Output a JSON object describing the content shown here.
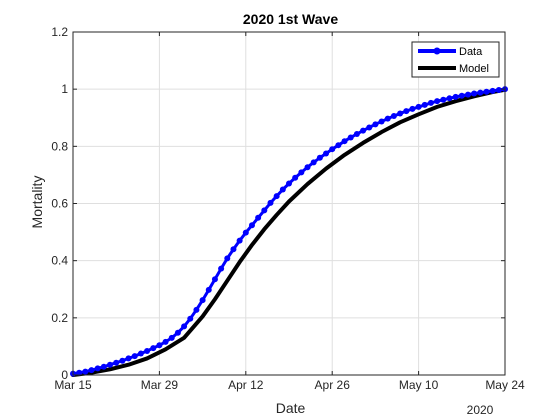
{
  "chart_data": {
    "type": "line",
    "title": "2020 1st Wave",
    "xlabel": "Date",
    "ylabel": "Mortality",
    "x_secondary_label": "2020",
    "x_ticks": [
      "2020-03-15",
      "2020-03-29",
      "2020-04-12",
      "2020-04-26",
      "2020-05-10",
      "2020-05-24"
    ],
    "x_tick_labels": [
      "Mar 15",
      "Mar 29",
      "Apr 12",
      "Apr 26",
      "May 10",
      "May 24"
    ],
    "xlim": [
      "2020-03-15",
      "2020-05-24"
    ],
    "ylim": [
      0,
      1.2
    ],
    "y_ticks": [
      0,
      0.2,
      0.4,
      0.6,
      0.8,
      1,
      1.2
    ],
    "y_tick_labels": [
      "0",
      "0.2",
      "0.4",
      "0.6",
      "0.8",
      "1",
      "1.2"
    ],
    "grid": true,
    "legend_position": "top-right",
    "series": [
      {
        "name": "Data",
        "color": "#0000ff",
        "style": "line-with-circle-markers",
        "x": [
          "2020-03-15",
          "2020-03-16",
          "2020-03-17",
          "2020-03-18",
          "2020-03-19",
          "2020-03-20",
          "2020-03-21",
          "2020-03-22",
          "2020-03-23",
          "2020-03-24",
          "2020-03-25",
          "2020-03-26",
          "2020-03-27",
          "2020-03-28",
          "2020-03-29",
          "2020-03-30",
          "2020-03-31",
          "2020-04-01",
          "2020-04-02",
          "2020-04-03",
          "2020-04-04",
          "2020-04-05",
          "2020-04-06",
          "2020-04-07",
          "2020-04-08",
          "2020-04-09",
          "2020-04-10",
          "2020-04-11",
          "2020-04-12",
          "2020-04-13",
          "2020-04-14",
          "2020-04-15",
          "2020-04-16",
          "2020-04-17",
          "2020-04-18",
          "2020-04-19",
          "2020-04-20",
          "2020-04-21",
          "2020-04-22",
          "2020-04-23",
          "2020-04-24",
          "2020-04-25",
          "2020-04-26",
          "2020-04-27",
          "2020-04-28",
          "2020-04-29",
          "2020-04-30",
          "2020-05-01",
          "2020-05-02",
          "2020-05-03",
          "2020-05-04",
          "2020-05-05",
          "2020-05-06",
          "2020-05-07",
          "2020-05-08",
          "2020-05-09",
          "2020-05-10",
          "2020-05-11",
          "2020-05-12",
          "2020-05-13",
          "2020-05-14",
          "2020-05-15",
          "2020-05-16",
          "2020-05-17",
          "2020-05-18",
          "2020-05-19",
          "2020-05-20",
          "2020-05-21",
          "2020-05-22",
          "2020-05-23",
          "2020-05-24"
        ],
        "y": [
          0.005,
          0.008,
          0.012,
          0.017,
          0.023,
          0.029,
          0.036,
          0.043,
          0.05,
          0.058,
          0.066,
          0.075,
          0.084,
          0.094,
          0.104,
          0.116,
          0.13,
          0.148,
          0.17,
          0.197,
          0.228,
          0.262,
          0.298,
          0.335,
          0.372,
          0.408,
          0.44,
          0.47,
          0.498,
          0.524,
          0.55,
          0.576,
          0.602,
          0.626,
          0.649,
          0.67,
          0.69,
          0.709,
          0.727,
          0.744,
          0.76,
          0.775,
          0.79,
          0.804,
          0.818,
          0.831,
          0.843,
          0.855,
          0.866,
          0.877,
          0.887,
          0.897,
          0.906,
          0.915,
          0.923,
          0.931,
          0.938,
          0.945,
          0.952,
          0.958,
          0.963,
          0.968,
          0.973,
          0.977,
          0.981,
          0.985,
          0.988,
          0.991,
          0.994,
          0.997,
          1.0
        ]
      },
      {
        "name": "Model",
        "color": "#000000",
        "style": "thick-line",
        "x": [
          "2020-03-15",
          "2020-03-18",
          "2020-03-21",
          "2020-03-24",
          "2020-03-27",
          "2020-03-30",
          "2020-04-02",
          "2020-04-05",
          "2020-04-07",
          "2020-04-09",
          "2020-04-11",
          "2020-04-13",
          "2020-04-15",
          "2020-04-17",
          "2020-04-19",
          "2020-04-22",
          "2020-04-25",
          "2020-04-28",
          "2020-05-01",
          "2020-05-04",
          "2020-05-07",
          "2020-05-10",
          "2020-05-13",
          "2020-05-16",
          "2020-05-19",
          "2020-05-22",
          "2020-05-24"
        ],
        "y": [
          0.0,
          0.008,
          0.02,
          0.036,
          0.058,
          0.09,
          0.13,
          0.205,
          0.265,
          0.33,
          0.395,
          0.455,
          0.51,
          0.56,
          0.607,
          0.668,
          0.722,
          0.77,
          0.812,
          0.85,
          0.884,
          0.912,
          0.938,
          0.958,
          0.975,
          0.99,
          0.998
        ]
      }
    ]
  }
}
